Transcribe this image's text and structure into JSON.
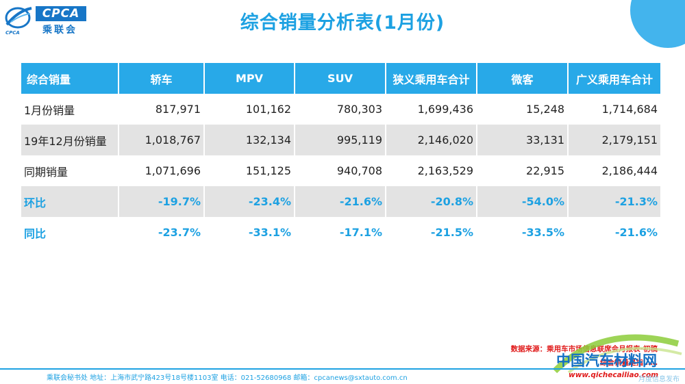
{
  "logo": {
    "en": "CPCA",
    "cn": "乘联会",
    "sub": "CPCA"
  },
  "title": "综合销量分析表(1月份)",
  "table": {
    "headers": [
      "综合销量",
      "轿车",
      "MPV",
      "SUV",
      "狭义乘用车合计",
      "微客",
      "广义乘用车合计"
    ],
    "rows": [
      {
        "label": "1月份销量",
        "values": [
          "817,971",
          "101,162",
          "780,303",
          "1,699,436",
          "15,248",
          "1,714,684"
        ]
      },
      {
        "label": "19年12月份销量",
        "values": [
          "1,018,767",
          "132,134",
          "995,119",
          "2,146,020",
          "33,131",
          "2,179,151"
        ]
      },
      {
        "label": "同期销量",
        "values": [
          "1,071,696",
          "151,125",
          "940,708",
          "2,163,529",
          "22,915",
          "2,186,444"
        ]
      },
      {
        "label": "环比",
        "values": [
          "-19.7%",
          "-23.4%",
          "-21.6%",
          "-20.8%",
          "-54.0%",
          "-21.3%"
        ]
      },
      {
        "label": "同比",
        "values": [
          "-23.7%",
          "-33.1%",
          "-17.1%",
          "-21.5%",
          "-33.5%",
          "-21.6%"
        ]
      }
    ]
  },
  "notes": {
    "source": "数据来源：乘用车市场信息联席会月报表-初稿",
    "definition": "综合销量是指……"
  },
  "footer": {
    "text": "乘联会秘书处   地址：上海市武宁路423号18号楼1103室   电话：021-52680968   邮箱：cpcanews@sxtauto.com.cn",
    "right": "月度信息发布"
  },
  "watermark": {
    "cn": "中国汽车材料网",
    "url": "www.qichecailiao.com"
  },
  "colors": {
    "accent": "#1da1e2",
    "header_bg": "#28a9e8",
    "row_grey": "#e3e3e3",
    "note_red": "#e01b1b"
  }
}
